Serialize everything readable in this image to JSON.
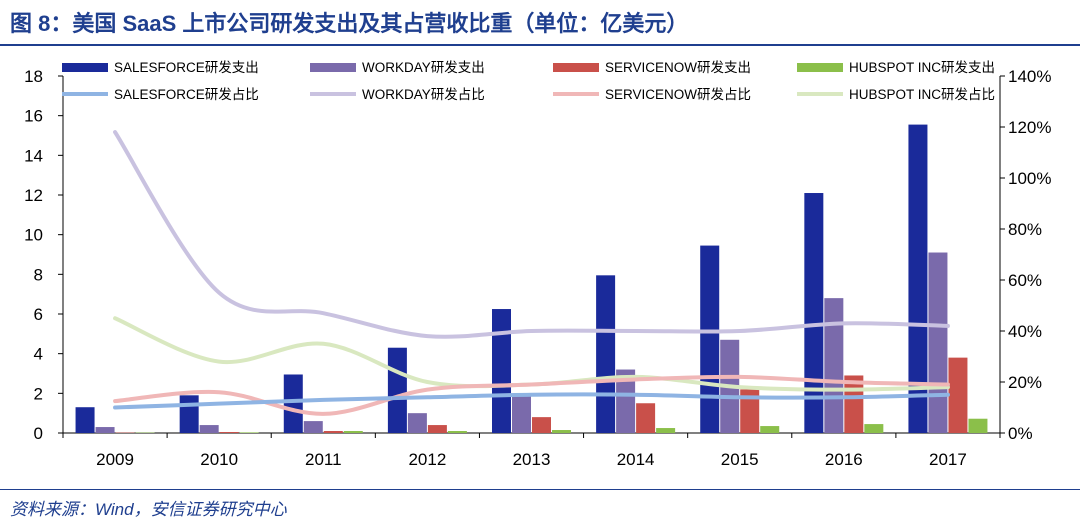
{
  "header": {
    "title": "图 8：美国 SaaS 上市公司研发支出及其占营收比重（单位：亿美元）"
  },
  "footer": {
    "source": "资料来源：Wind，安信证券研究中心"
  },
  "chart_data": {
    "type": "bar",
    "categories": [
      "2009",
      "2010",
      "2011",
      "2012",
      "2013",
      "2014",
      "2015",
      "2016",
      "2017"
    ],
    "ylim": [
      0,
      18
    ],
    "yticks": [
      0,
      2,
      4,
      6,
      8,
      10,
      12,
      14,
      16,
      18
    ],
    "y2lim": [
      0,
      140
    ],
    "y2ticks": [
      "0%",
      "20%",
      "40%",
      "60%",
      "80%",
      "100%",
      "120%",
      "140%"
    ],
    "legend_position": "top",
    "bar_series": [
      {
        "name": "SALESFORCE研发支出",
        "color": "#1a2a9a",
        "values": [
          1.3,
          1.9,
          2.95,
          4.3,
          6.25,
          7.95,
          9.45,
          12.1,
          15.55
        ]
      },
      {
        "name": "WORKDAY研发支出",
        "color": "#7a6aab",
        "values": [
          0.3,
          0.4,
          0.6,
          1.0,
          1.9,
          3.2,
          4.7,
          6.8,
          9.1
        ]
      },
      {
        "name": "SERVICENOW研发支出",
        "color": "#c9504a",
        "values": [
          0.02,
          0.05,
          0.1,
          0.4,
          0.8,
          1.5,
          2.2,
          2.9,
          3.8
        ]
      },
      {
        "name": "HUBSPOT INC研发支出",
        "color": "#8bbf4a",
        "values": [
          0.02,
          0.03,
          0.1,
          0.1,
          0.15,
          0.25,
          0.35,
          0.45,
          0.72
        ]
      }
    ],
    "line_series": [
      {
        "name": "SALESFORCE研发占比",
        "color": "#8fb4e3",
        "values": [
          10,
          11.5,
          13,
          14,
          15,
          15,
          14,
          14,
          15
        ]
      },
      {
        "name": "WORKDAY研发占比",
        "color": "#c9c2e0",
        "values": [
          118,
          55,
          47,
          38,
          40,
          40,
          40,
          43,
          42
        ]
      },
      {
        "name": "SERVICENOW研发占比",
        "color": "#f0b7b7",
        "values": [
          12.5,
          16,
          7.5,
          17,
          19,
          21,
          22,
          20,
          19
        ]
      },
      {
        "name": "HUBSPOT INC研发占比",
        "color": "#d9e8c0",
        "values": [
          45,
          28,
          35,
          20,
          19,
          22,
          18,
          17,
          18
        ]
      }
    ]
  }
}
